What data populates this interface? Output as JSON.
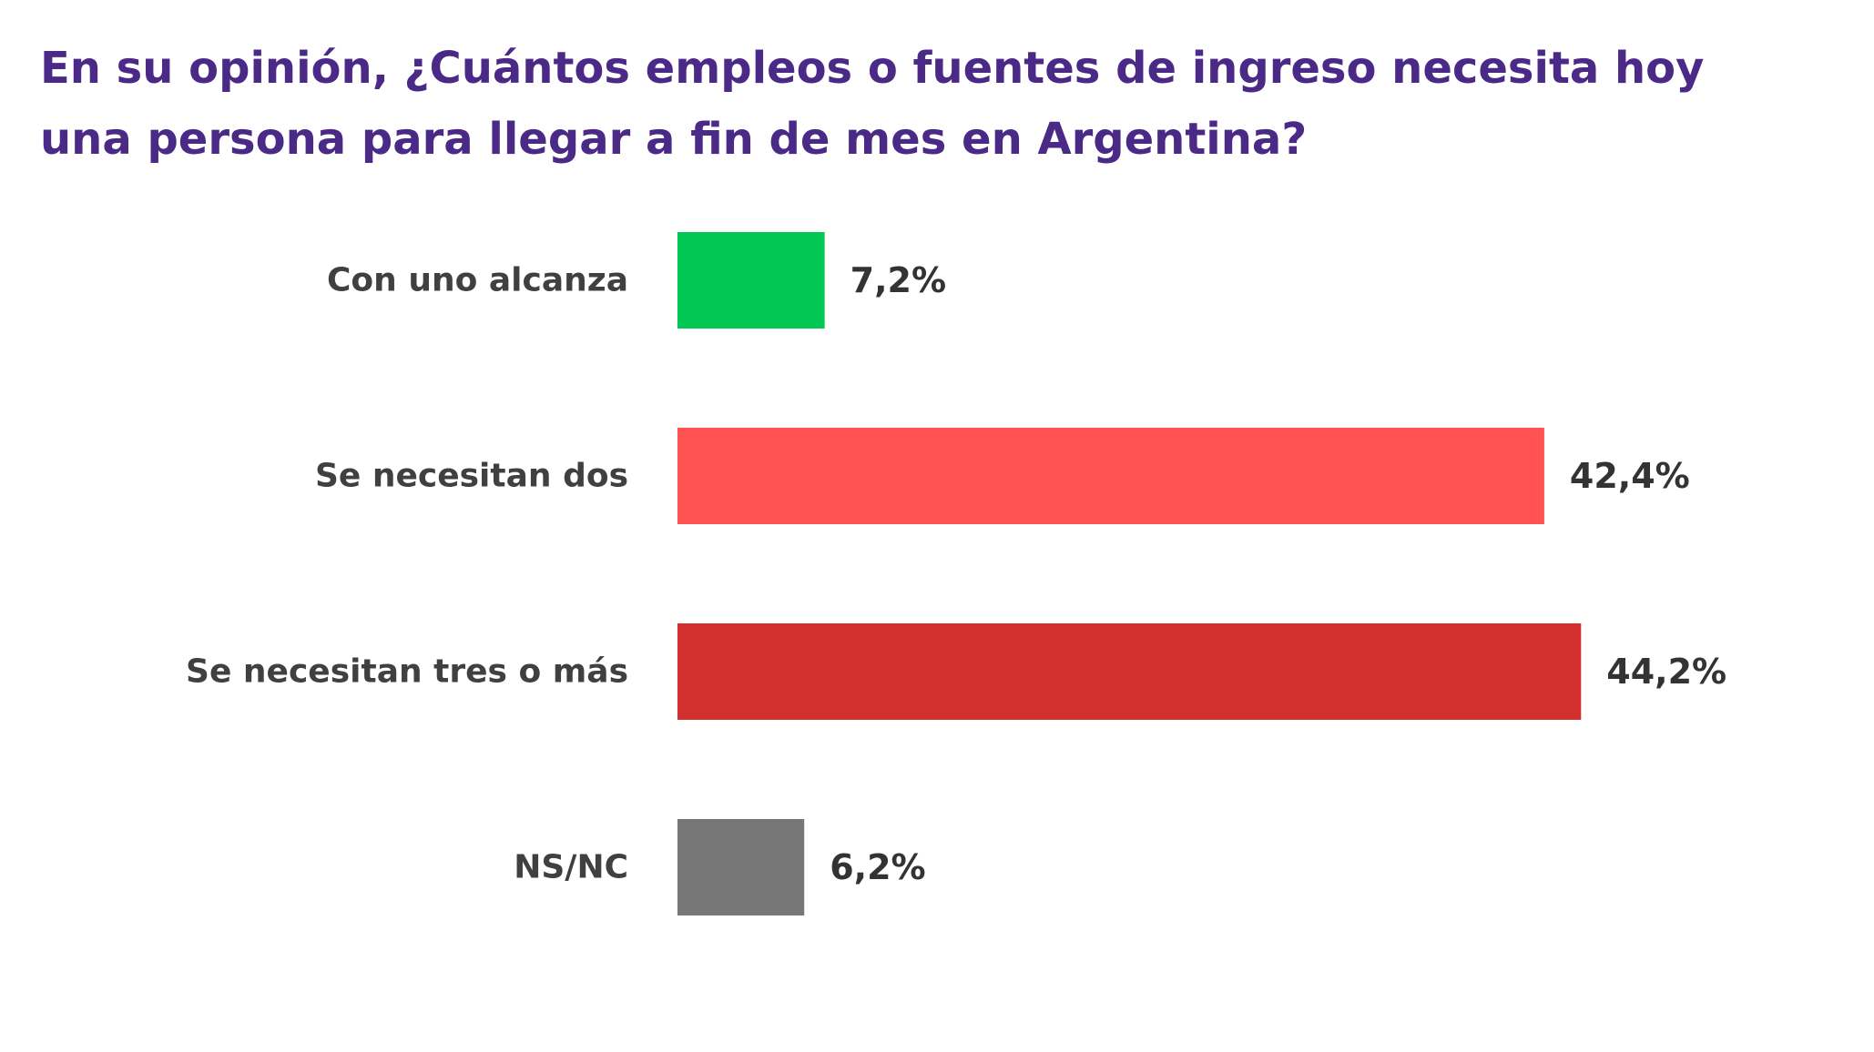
{
  "chart_data": {
    "type": "bar",
    "orientation": "horizontal",
    "title": "En su opinión, ¿Cuántos empleos o fuentes de ingreso necesita hoy una persona para llegar a fin de mes en Argentina?",
    "categories": [
      "Con uno alcanza",
      "Se necesitan dos",
      "Se necesitan tres o más",
      "NS/NC"
    ],
    "values": [
      7.2,
      42.4,
      44.2,
      6.2
    ],
    "value_labels": [
      "7,2%",
      "42,4%",
      "44,2%",
      "6,2%"
    ],
    "colors": [
      "#00c853",
      "#ff5252",
      "#d32f2f",
      "#777777"
    ],
    "unit": "%",
    "xlim": [
      0,
      50
    ],
    "grid": false,
    "axes_visible": false
  },
  "colors": {
    "title": "#4b2a87",
    "category_text": "#404040",
    "value_text": "#333333"
  }
}
